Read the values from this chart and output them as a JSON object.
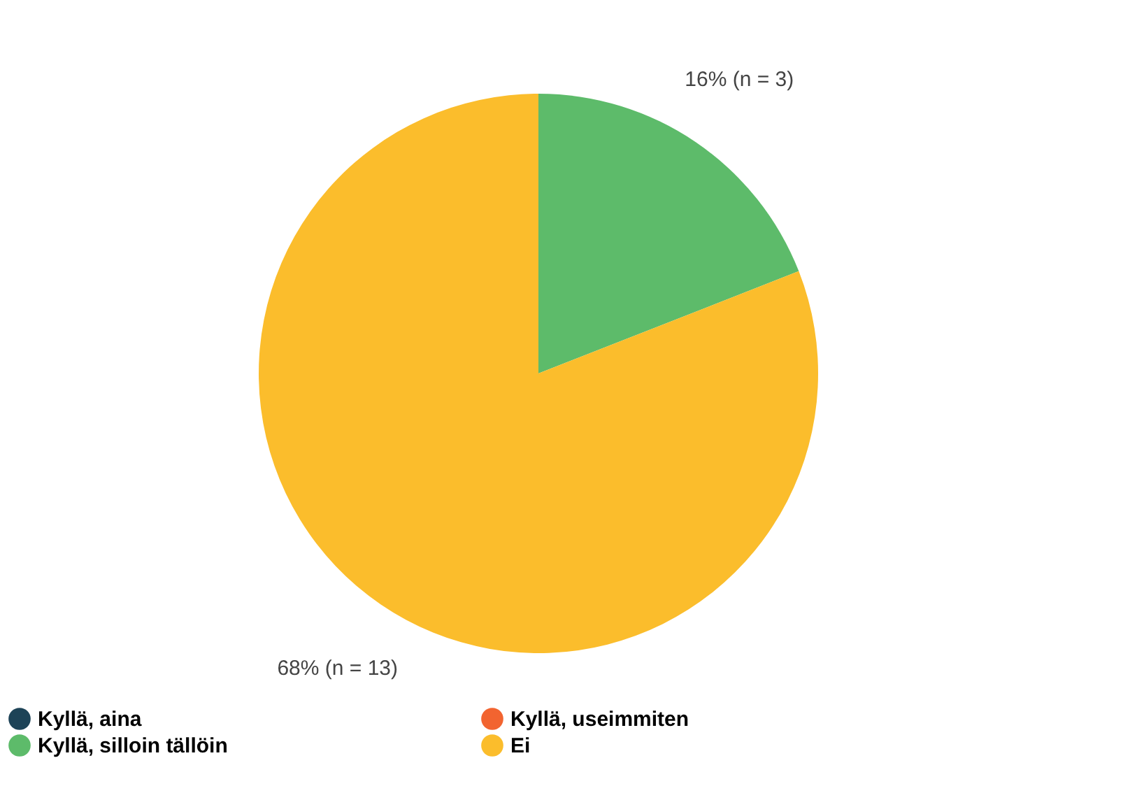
{
  "chart_data": {
    "type": "pie",
    "categories": [
      "Kyllä, aina",
      "Kyllä, useimmiten",
      "Kyllä, silloin tällöin",
      "Ei"
    ],
    "values": [
      0,
      0,
      16,
      68
    ],
    "colors": [
      "#1d4357",
      "#f26430",
      "#5dbb6a",
      "#fbbd2c"
    ],
    "value_labels": [
      null,
      null,
      "16% (n = 3)",
      "68% (n = 13)"
    ],
    "legend": "bottom"
  }
}
